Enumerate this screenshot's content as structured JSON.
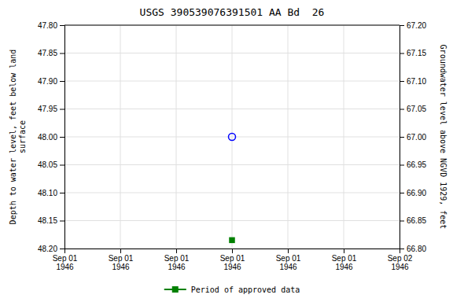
{
  "chart_data": {
    "type": "scatter",
    "title": "USGS 390539076391501 AA Bd  26",
    "y_label": "Depth to water level, feet below land\nsurface",
    "y2_label": "Groundwater level above NGVD 1929, feet",
    "categories": [
      "Sep 01\n1946",
      "Sep 01\n1946",
      "Sep 01\n1946",
      "Sep 01\n1946",
      "Sep 01\n1946",
      "Sep 01\n1946",
      "Sep 02\n1946"
    ],
    "series": [
      {
        "color": "#0000ff",
        "marker": "open-circle",
        "values": [
          null,
          null,
          null,
          48.0,
          null,
          null,
          null
        ]
      },
      {
        "name": "Period of approved data",
        "color": "#008000",
        "marker": "square",
        "values": [
          null,
          null,
          null,
          48.185,
          null,
          null,
          null
        ]
      }
    ],
    "ylim": [
      48.2,
      47.8
    ],
    "yticks": [
      {
        "value": 47.8,
        "label": "47.80"
      },
      47.85,
      {
        "value": 47.9,
        "label": "47.90"
      },
      47.95,
      {
        "value": 48.0,
        "label": "48.00"
      },
      48.05,
      {
        "value": 48.1,
        "label": "48.10"
      },
      48.15,
      {
        "value": 48.2,
        "label": "48.20"
      }
    ],
    "y2lim": [
      66.8,
      67.2
    ],
    "y2ticks": [
      {
        "value": 67.2,
        "label": "67.20"
      },
      67.15,
      {
        "value": 67.1,
        "label": "67.10"
      },
      67.05,
      {
        "value": 67.0,
        "label": "67.00"
      },
      66.95,
      {
        "value": 66.9,
        "label": "66.90"
      },
      66.85,
      {
        "value": 66.8,
        "label": "66.80"
      }
    ],
    "grid": true,
    "legend": "bottom"
  }
}
